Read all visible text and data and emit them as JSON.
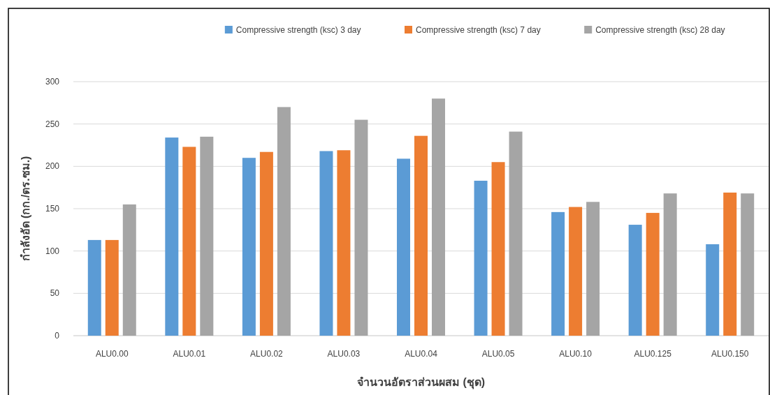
{
  "chart_data": {
    "type": "bar",
    "xlabel": "จำนวนอัตราส่วนผสม (ชุด)",
    "ylabel": "กำลังอัด (กก./ตร.ซม.)",
    "categories": [
      "ALU0.00",
      "ALU0.01",
      "ALU0.02",
      "ALU0.03",
      "ALU0.04",
      "ALU0.05",
      "ALU0.10",
      "ALU0.125",
      "ALU0.150"
    ],
    "series": [
      {
        "name": "Compressive strength (ksc) 3 day",
        "color": "#5b9bd5",
        "values": [
          113,
          234,
          210,
          218,
          209,
          183,
          146,
          131,
          108
        ]
      },
      {
        "name": "Compressive strength (ksc) 7 day",
        "color": "#ed7d31",
        "values": [
          113,
          223,
          217,
          219,
          236,
          205,
          152,
          145,
          169
        ]
      },
      {
        "name": "Compressive strength (ksc) 28 day",
        "color": "#a5a5a5",
        "values": [
          155,
          235,
          270,
          255,
          280,
          241,
          158,
          168,
          168
        ]
      }
    ],
    "ylim": [
      0,
      300
    ],
    "yticks": [
      0,
      50,
      100,
      150,
      200,
      250,
      300
    ],
    "grid": "y",
    "legend": "top right"
  }
}
